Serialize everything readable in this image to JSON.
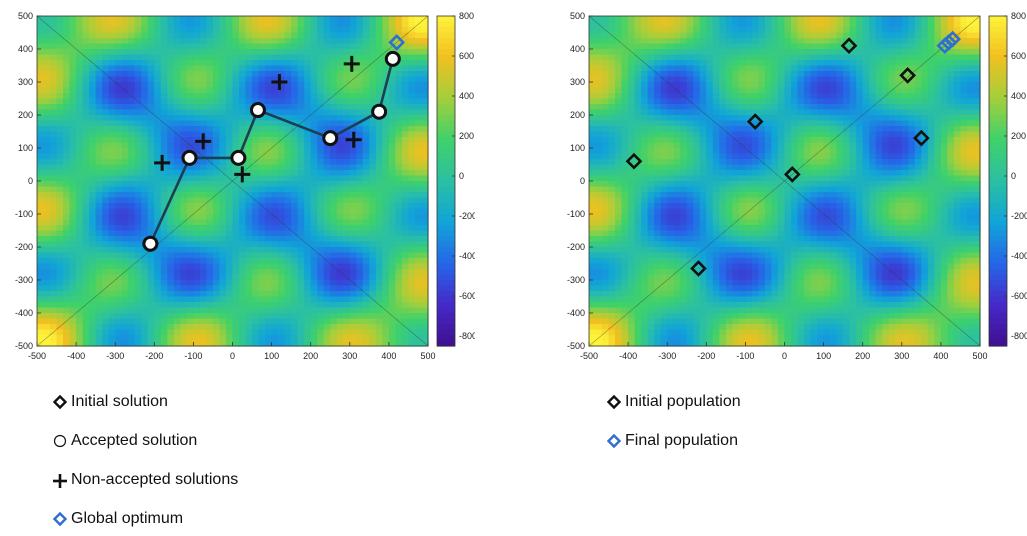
{
  "chart_data": [
    {
      "type": "heatmap",
      "subtype": "contour",
      "xlim": [
        -500,
        500
      ],
      "ylim": [
        -500,
        500
      ],
      "x_ticks": [
        "-500",
        "-400",
        "-300",
        "-200",
        "-100",
        "0",
        "100",
        "200",
        "300",
        "400",
        "500"
      ],
      "y_ticks": [
        "500",
        "400",
        "300",
        "200",
        "100",
        "0",
        "-100",
        "-200",
        "-300",
        "-400",
        "-500"
      ],
      "colorbar_range": [
        -850,
        800
      ],
      "colorbar_ticks": [
        "800",
        "600",
        "400",
        "200",
        "0",
        "-200",
        "-400",
        "-600",
        "-800"
      ],
      "colormap": [
        "#3e0f8f",
        "#4629c9",
        "#2567e8",
        "#11a4d8",
        "#2bc0a2",
        "#3fd16a",
        "#a3cf3c",
        "#f0c020",
        "#fef33a"
      ],
      "series": [
        {
          "marker": "diamond",
          "color": "#111111",
          "points": [
            [
              -210,
              -190
            ]
          ]
        },
        {
          "marker": "circle",
          "color": "#111111",
          "path": true,
          "points": [
            [
              -210,
              -190
            ],
            [
              -110,
              70
            ],
            [
              15,
              70
            ],
            [
              65,
              215
            ],
            [
              250,
              130
            ],
            [
              375,
              210
            ],
            [
              410,
              370
            ]
          ]
        },
        {
          "marker": "plus",
          "color": "#111111",
          "points": [
            [
              -180,
              55
            ],
            [
              -75,
              120
            ],
            [
              25,
              20
            ],
            [
              120,
              300
            ],
            [
              310,
              125
            ],
            [
              305,
              355
            ]
          ]
        },
        {
          "marker": "diamond",
          "color": "#2f6fd0",
          "points": [
            [
              420,
              420
            ]
          ]
        }
      ],
      "legend": [
        {
          "marker": "diamond",
          "color": "#111111",
          "label": "Initial solution"
        },
        {
          "marker": "circle",
          "color": "#111111",
          "label": "Accepted solution"
        },
        {
          "marker": "plus",
          "color": "#111111",
          "label": "Non-accepted solutions"
        },
        {
          "marker": "diamond",
          "color": "#2f6fd0",
          "label": "Global optimum"
        }
      ]
    },
    {
      "type": "heatmap",
      "subtype": "contour",
      "xlim": [
        -500,
        500
      ],
      "ylim": [
        -500,
        500
      ],
      "x_ticks": [
        "-500",
        "-400",
        "-300",
        "-200",
        "-100",
        "0",
        "100",
        "200",
        "300",
        "400",
        "500"
      ],
      "y_ticks": [
        "500",
        "400",
        "300",
        "200",
        "100",
        "0",
        "-100",
        "-200",
        "-300",
        "-400",
        "-500"
      ],
      "colorbar_range": [
        -850,
        800
      ],
      "colorbar_ticks": [
        "800",
        "600",
        "400",
        "200",
        "0",
        "-200",
        "-400",
        "-600",
        "-800"
      ],
      "colormap": [
        "#3e0f8f",
        "#4629c9",
        "#2567e8",
        "#11a4d8",
        "#2bc0a2",
        "#3fd16a",
        "#a3cf3c",
        "#f0c020",
        "#fef33a"
      ],
      "series": [
        {
          "marker": "diamond",
          "color": "#111111",
          "points": [
            [
              -385,
              60
            ],
            [
              -75,
              180
            ],
            [
              20,
              20
            ],
            [
              -220,
              -265
            ],
            [
              165,
              410
            ],
            [
              315,
              320
            ],
            [
              350,
              130
            ]
          ]
        },
        {
          "marker": "diamond",
          "color": "#2f6fd0",
          "points": [
            [
              420,
              420
            ],
            [
              430,
              430
            ],
            [
              410,
              410
            ]
          ]
        }
      ],
      "legend": [
        {
          "marker": "diamond",
          "color": "#111111",
          "label": "Initial population"
        },
        {
          "marker": "diamond",
          "color": "#2f6fd0",
          "label": "Final population"
        }
      ]
    }
  ]
}
